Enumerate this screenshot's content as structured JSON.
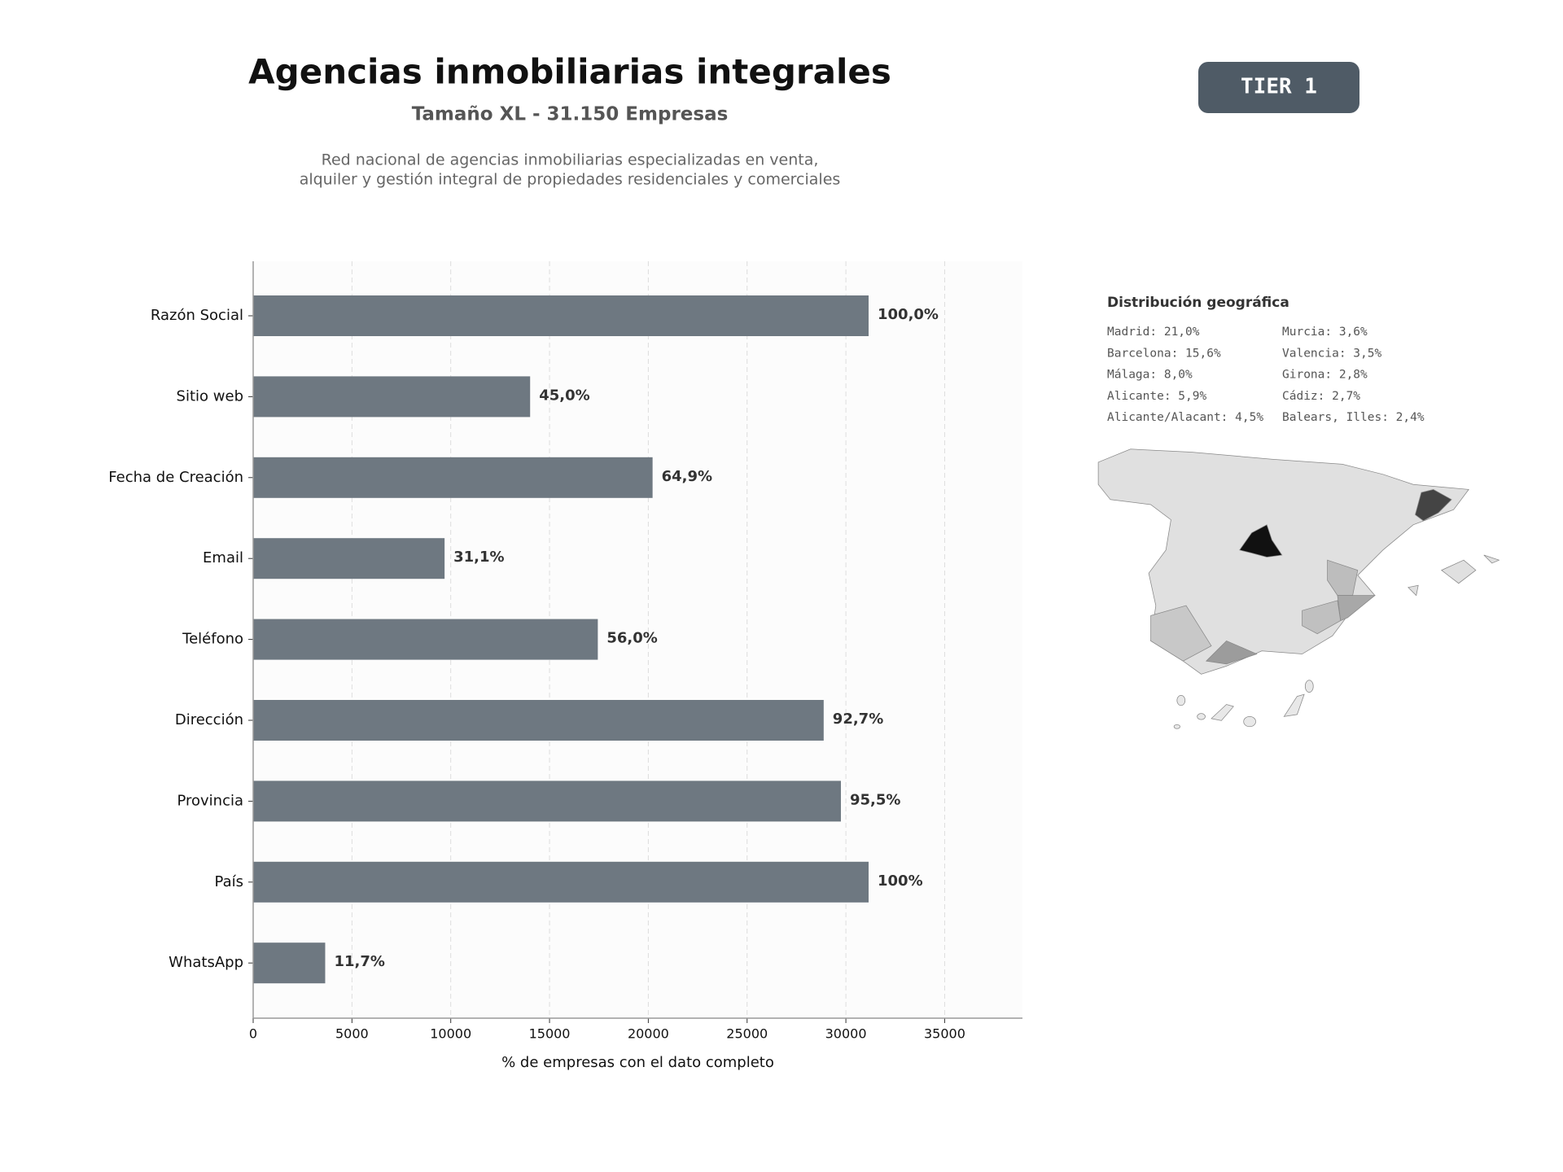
{
  "header": {
    "title": "Agencias inmobiliarias integrales",
    "subtitle": "Tamaño XL - 31.150 Empresas",
    "description": [
      "Red nacional de agencias inmobiliarias especializadas en venta,",
      "alquiler y gestión integral de propiedades residenciales y comerciales"
    ],
    "badge": "TIER 1"
  },
  "chart_data": {
    "type": "bar",
    "orientation": "horizontal",
    "categories": [
      "Razón Social",
      "Sitio web",
      "Fecha de Creación",
      "Email",
      "Teléfono",
      "Dirección",
      "Provincia",
      "País",
      "WhatsApp"
    ],
    "values": [
      31150,
      14018,
      20216,
      9688,
      17444,
      28876,
      29748,
      31150,
      3645
    ],
    "value_labels": [
      "100,0%",
      "45,0%",
      "64,9%",
      "31,1%",
      "56,0%",
      "92,7%",
      "95,5%",
      "100%",
      "11,7%"
    ],
    "color": "#6e7881",
    "xlim": [
      0,
      38937.5
    ],
    "xticks": [
      0,
      5000,
      10000,
      15000,
      20000,
      25000,
      30000,
      35000
    ],
    "xlabel": "% de empresas con el dato completo",
    "grid": true
  },
  "geo": {
    "title": "Distribución geográfica",
    "items": [
      [
        "Madrid: 21,0%",
        "Barcelona: 15,6%",
        "Málaga: 8,0%",
        "Alicante: 5,9%",
        "Alicante/Alacant: 4,5%"
      ],
      [
        "Murcia: 3,6%",
        "Valencia: 3,5%",
        "Girona: 2,8%",
        "Cádiz: 2,7%",
        "Balears, Illes: 2,4%"
      ]
    ]
  }
}
